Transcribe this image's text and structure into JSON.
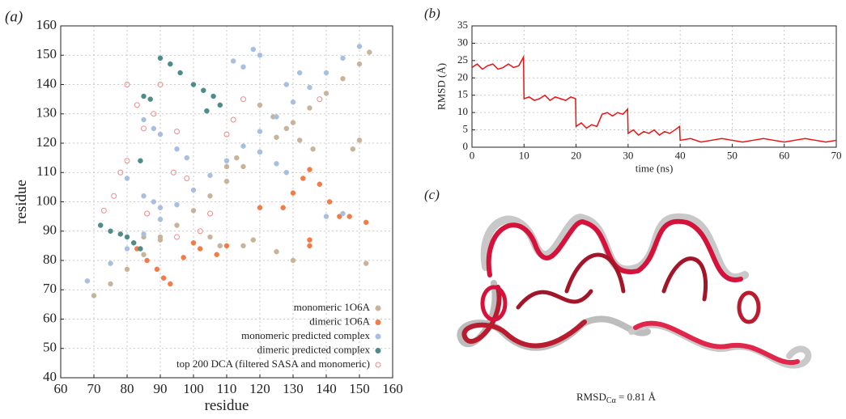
{
  "chart_data": [
    {
      "type": "scatter",
      "panel_label": "(a)",
      "xlabel": "residue",
      "ylabel": "residue",
      "xlim": [
        60,
        160
      ],
      "xticks": [
        60,
        70,
        80,
        90,
        100,
        110,
        120,
        130,
        140,
        150,
        160
      ],
      "ylim": [
        40,
        160
      ],
      "yticks": [
        40,
        50,
        60,
        70,
        80,
        90,
        100,
        110,
        120,
        130,
        140,
        150,
        160
      ],
      "grid": true,
      "legend": "lower right",
      "series": [
        {
          "name": "monomeric 1O6A",
          "color": "#c8b49b",
          "marker": "filled",
          "x": [
            70,
            75,
            80,
            85,
            90,
            95,
            100,
            105,
            110,
            115,
            120,
            125,
            130,
            135,
            140,
            145,
            150,
            153,
            120,
            124,
            128,
            132,
            136,
            110,
            113,
            105,
            108,
            115,
            125,
            130,
            118,
            152,
            148,
            150,
            85,
            90
          ],
          "values": [
            68,
            72,
            77,
            82,
            87,
            92,
            97,
            102,
            107,
            112,
            117,
            122,
            127,
            132,
            137,
            142,
            147,
            151,
            133,
            129,
            125,
            121,
            118,
            112,
            115,
            88,
            85,
            85,
            83,
            80,
            87,
            79,
            118,
            121,
            88,
            88
          ]
        },
        {
          "name": "dimeric 1O6A",
          "color": "#f27c45",
          "marker": "filled",
          "x": [
            83,
            86,
            89,
            91,
            93,
            127,
            130,
            133,
            135,
            138,
            141,
            144,
            147,
            152,
            110,
            107,
            100,
            97,
            102,
            135,
            135,
            120
          ],
          "values": [
            84,
            80,
            77,
            74,
            72,
            98,
            103,
            108,
            111,
            106,
            100,
            95,
            95,
            93,
            85,
            82,
            86,
            81,
            84,
            87,
            85,
            98
          ]
        },
        {
          "name": "monomeric predicted complex",
          "color": "#a8bfe0",
          "marker": "filled",
          "x": [
            68,
            75,
            80,
            85,
            90,
            95,
            100,
            105,
            110,
            115,
            120,
            125,
            130,
            135,
            140,
            145,
            150,
            85,
            88,
            90,
            95,
            98,
            80,
            85,
            88,
            90,
            120,
            118,
            120,
            125,
            128,
            112,
            115,
            128,
            132,
            140,
            145
          ],
          "values": [
            73,
            79,
            84,
            89,
            94,
            99,
            104,
            109,
            114,
            119,
            124,
            129,
            134,
            139,
            144,
            149,
            153,
            128,
            125,
            123,
            118,
            115,
            108,
            102,
            100,
            98,
            150,
            152,
            117,
            113,
            110,
            148,
            146,
            140,
            144,
            95,
            96
          ]
        },
        {
          "name": "dimeric predicted complex",
          "color": "#4e8c8a",
          "marker": "filled",
          "x": [
            72,
            75,
            78,
            80,
            82,
            84,
            100,
            103,
            106,
            108,
            104,
            85,
            87,
            90,
            93,
            96,
            84
          ],
          "values": [
            92,
            90,
            89,
            88,
            86,
            84,
            140,
            138,
            136,
            133,
            131,
            136,
            135,
            149,
            147,
            144,
            114
          ]
        },
        {
          "name": "top 200 DCA (filtered SASA and monomeric)",
          "color": "#f08c8c",
          "marker": "open",
          "x": [
            73,
            76,
            78,
            80,
            83,
            85,
            88,
            90,
            94,
            95,
            98,
            102,
            105,
            110,
            112,
            115,
            138,
            95,
            80,
            86
          ],
          "values": [
            97,
            102,
            110,
            114,
            133,
            125,
            130,
            140,
            110,
            88,
            108,
            90,
            96,
            123,
            128,
            135,
            135,
            124,
            140,
            96
          ]
        }
      ]
    },
    {
      "type": "line",
      "panel_label": "(b)",
      "xlabel": "time (ns)",
      "ylabel": "RMSD (Å)",
      "xlim": [
        0,
        70
      ],
      "xticks": [
        0,
        10,
        20,
        30,
        40,
        50,
        60,
        70
      ],
      "ylim": [
        0,
        35
      ],
      "yticks": [
        0,
        5,
        10,
        15,
        20,
        25,
        30,
        35
      ],
      "grid": true,
      "color": "#ee1111",
      "x": [
        0,
        1,
        2,
        3,
        4,
        5,
        6,
        7,
        8,
        9,
        9.9,
        10,
        11,
        12,
        13,
        14,
        15,
        16,
        17,
        18,
        19,
        19.9,
        20,
        21,
        22,
        23,
        24,
        25,
        26,
        27,
        28,
        29,
        29.9,
        30,
        31,
        32,
        33,
        34,
        35,
        36,
        37,
        38,
        39,
        39.9,
        40,
        42,
        44,
        46,
        48,
        50,
        52,
        54,
        56,
        58,
        60,
        62,
        64,
        66,
        68,
        70
      ],
      "values": [
        23,
        24,
        22.5,
        23.5,
        24,
        22.5,
        23,
        24,
        23,
        23.5,
        26,
        14,
        14.5,
        13.5,
        14,
        15,
        13.5,
        14.5,
        14,
        13.5,
        14.5,
        14,
        6,
        7,
        5.5,
        6.5,
        6,
        9.5,
        10,
        9,
        10,
        9.5,
        11,
        4,
        5,
        3.5,
        4.5,
        4,
        5,
        3.5,
        4.5,
        4,
        5,
        6,
        2,
        2.5,
        1.5,
        2,
        2.5,
        2,
        1.5,
        2,
        2.5,
        2,
        1.5,
        2,
        2.5,
        2,
        1.5,
        2
      ]
    }
  ],
  "image_panel": {
    "label": "(c)",
    "annotation_main": "RMSD",
    "annotation_sub": "Cα",
    "annotation_rest": " = 0.81 Å"
  }
}
